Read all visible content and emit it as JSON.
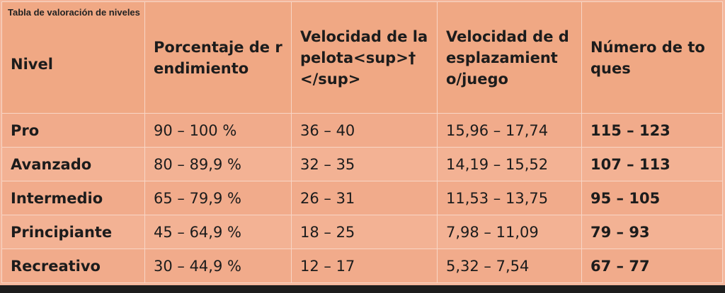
{
  "caption": "Tabla de valoración de niveles",
  "headers": [
    "Nivel",
    "Porcentaje de rendimiento",
    "Velocidad de la pelota<sup>†</sup>",
    "Velocidad de desplazamiento/juego",
    "Número de toques"
  ],
  "rows": [
    [
      "Pro",
      "90 – 100 %",
      "36 – 40",
      "15,96 – 17,74",
      "115 – 123"
    ],
    [
      "Avanzado",
      "80 – 89,9 %",
      "32 – 35",
      "14,19 – 15,52",
      "107 – 113"
    ],
    [
      "Intermedio",
      "65 – 79,9 %",
      "26 – 31",
      "11,53 – 13,75",
      "95 – 105"
    ],
    [
      "Principiante",
      "45 – 64,9 %",
      "18 – 25",
      "7,98 – 11,09",
      "79 – 93"
    ],
    [
      "Recreativo",
      "30 – 44,9 %",
      "12 – 17",
      "5,32 – 7,54",
      "67 – 77"
    ]
  ],
  "colors": {
    "background": "#f4b79c",
    "header_fill": "#f0a884",
    "grid_line": "#f8d6c6",
    "text": "#1c1c1c"
  }
}
